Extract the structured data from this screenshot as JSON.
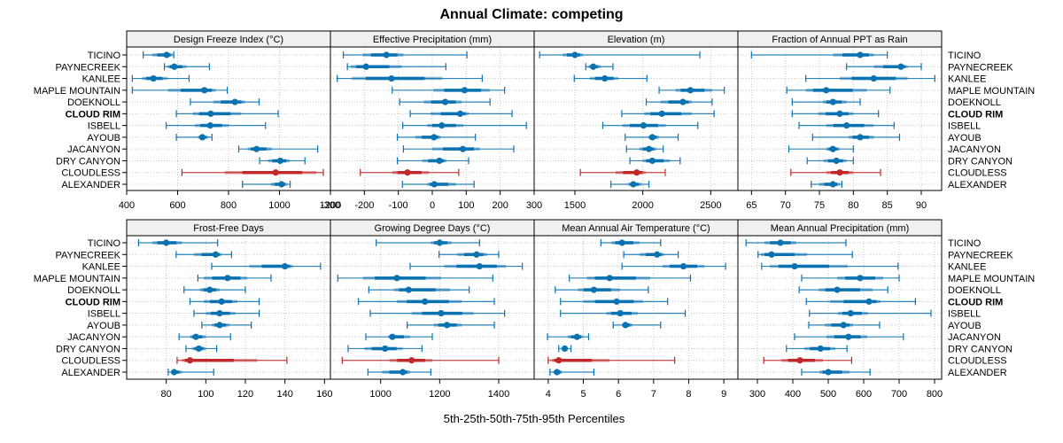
{
  "chart_data": {
    "type": "dotplot-percentiles",
    "title": "Annual Climate: competing",
    "xlabel": "5th-25th-50th-75th-95th Percentiles",
    "ylabel": "",
    "sites": [
      "TICINO",
      "PAYNECREEK",
      "KANLEE",
      "MAPLE MOUNTAIN",
      "DOEKNOLL",
      "CLOUD RIM",
      "ISBELL",
      "AYOUB",
      "JACANYON",
      "DRY CANYON",
      "CLOUDLESS",
      "ALEXANDER"
    ],
    "highlight_site": "CLOUD RIM",
    "colors": {
      "default": "#1f77b4",
      "series_blue": "#0a72b0",
      "highlight_red": "#c0282a",
      "strip_bg": "#f0f0f0",
      "grid": "#c8c8c8"
    },
    "red_site": "CLOUDLESS",
    "grid": true,
    "panels": [
      {
        "name": "Design Freeze Index (°C)",
        "xlim": [
          400,
          1200
        ],
        "ticks": [
          400,
          600,
          800,
          1000,
          1200
        ],
        "values": [
          [
            465,
            500,
            557,
            580,
            585
          ],
          [
            548,
            560,
            587,
            635,
            725
          ],
          [
            422,
            460,
            505,
            560,
            645
          ],
          [
            422,
            562,
            705,
            750,
            795
          ],
          [
            650,
            740,
            825,
            865,
            920
          ],
          [
            595,
            660,
            730,
            850,
            995
          ],
          [
            555,
            668,
            728,
            800,
            945
          ],
          [
            595,
            680,
            697,
            720,
            735
          ],
          [
            840,
            875,
            910,
            970,
            1150
          ],
          [
            922,
            955,
            1003,
            1040,
            1100
          ],
          [
            617,
            785,
            985,
            1145,
            1172
          ],
          [
            855,
            965,
            1008,
            1030,
            1042
          ]
        ]
      },
      {
        "name": "Effective Precipitation (mm)",
        "xlim": [
          -300,
          300
        ],
        "ticks": [
          -300,
          -200,
          -100,
          0,
          100,
          200,
          300
        ],
        "values": [
          [
            -262,
            -205,
            -135,
            -85,
            102
          ],
          [
            -250,
            -240,
            -195,
            -90,
            40
          ],
          [
            -280,
            -237,
            -120,
            30,
            147
          ],
          [
            -118,
            3,
            95,
            170,
            213
          ],
          [
            -96,
            -25,
            38,
            86,
            170
          ],
          [
            -65,
            -5,
            82,
            107,
            235
          ],
          [
            -87,
            -15,
            28,
            92,
            277
          ],
          [
            -103,
            -50,
            5,
            25,
            127
          ],
          [
            -85,
            0,
            90,
            140,
            240
          ],
          [
            -103,
            -30,
            21,
            42,
            107
          ],
          [
            -212,
            -118,
            -73,
            -10,
            78
          ],
          [
            -88,
            -15,
            6,
            70,
            123
          ]
        ]
      },
      {
        "name": "Elevation (m)",
        "xlim": [
          1200,
          2700
        ],
        "ticks": [
          1500,
          2000,
          2500
        ],
        "values": [
          [
            1240,
            1410,
            1500,
            1560,
            2420
          ],
          [
            1580,
            1600,
            1635,
            1690,
            1780
          ],
          [
            1495,
            1610,
            1720,
            1820,
            2030
          ],
          [
            2120,
            2240,
            2350,
            2510,
            2600
          ],
          [
            2025,
            2130,
            2295,
            2360,
            2510
          ],
          [
            1845,
            2010,
            2140,
            2360,
            2525
          ],
          [
            1705,
            1850,
            2005,
            2170,
            2405
          ],
          [
            1870,
            2040,
            2070,
            2120,
            2260
          ],
          [
            1880,
            1975,
            2045,
            2100,
            2150
          ],
          [
            1905,
            2000,
            2070,
            2200,
            2275
          ],
          [
            1540,
            1800,
            1955,
            2020,
            2165
          ],
          [
            1765,
            1890,
            1930,
            1990,
            2045
          ]
        ]
      },
      {
        "name": "Fraction of Annual PPT as Rain",
        "xlim": [
          63,
          93
        ],
        "ticks": [
          65,
          70,
          75,
          80,
          85,
          90
        ],
        "values": [
          [
            65,
            77,
            81,
            83,
            85
          ],
          [
            79,
            83,
            87,
            88,
            90
          ],
          [
            73,
            78,
            83,
            88,
            92
          ],
          [
            70.2,
            73,
            76,
            82,
            85.4
          ],
          [
            71,
            75.5,
            77,
            79,
            81
          ],
          [
            71,
            74.8,
            78,
            80,
            83.7
          ],
          [
            72,
            76,
            79,
            83,
            86
          ],
          [
            74,
            79.3,
            81,
            83,
            86.8
          ],
          [
            70.5,
            76,
            77,
            78,
            80
          ],
          [
            73.2,
            75.6,
            77.5,
            79,
            80
          ],
          [
            70.8,
            76,
            78,
            80,
            84
          ],
          [
            73.8,
            75,
            77,
            78,
            78.3
          ]
        ]
      },
      {
        "name": "Frost-Free Days",
        "xlim": [
          60,
          163
        ],
        "ticks": [
          80,
          100,
          120,
          140,
          160
        ],
        "values": [
          [
            66,
            73,
            80,
            88,
            106
          ],
          [
            85,
            94,
            105,
            108,
            113
          ],
          [
            103,
            122,
            140,
            144,
            158
          ],
          [
            96,
            99,
            111,
            121,
            133
          ],
          [
            89,
            97,
            102,
            107,
            120
          ],
          [
            92,
            99,
            108,
            116,
            127
          ],
          [
            94,
            100,
            107,
            115,
            127
          ],
          [
            98,
            103,
            107,
            112,
            123
          ],
          [
            86.5,
            92,
            95,
            100,
            112.5
          ],
          [
            90,
            93,
            96.5,
            100,
            105.5
          ],
          [
            85.5,
            88,
            92,
            126,
            141
          ],
          [
            81,
            82.5,
            84,
            88,
            104
          ]
        ]
      },
      {
        "name": "Growing Degree Days (°C)",
        "xlim": [
          830,
          1520
        ],
        "ticks": [
          1000,
          1200,
          1400
        ],
        "values": [
          [
            985,
            1170,
            1200,
            1240,
            1335
          ],
          [
            1198,
            1260,
            1325,
            1360,
            1400
          ],
          [
            1100,
            1215,
            1335,
            1425,
            1480
          ],
          [
            855,
            940,
            1055,
            1205,
            1380
          ],
          [
            960,
            1045,
            1095,
            1235,
            1300
          ],
          [
            925,
            1055,
            1150,
            1275,
            1385
          ],
          [
            965,
            1105,
            1205,
            1315,
            1420
          ],
          [
            1090,
            1180,
            1225,
            1275,
            1385
          ],
          [
            950,
            1025,
            1040,
            1100,
            1175
          ],
          [
            890,
            945,
            1015,
            1075,
            1140
          ],
          [
            870,
            1030,
            1105,
            1175,
            1400
          ],
          [
            957,
            1005,
            1075,
            1100,
            1170
          ]
        ]
      },
      {
        "name": "Mean Annual Air Temperature (°C)",
        "xlim": [
          3.6,
          9.4
        ],
        "ticks": [
          4,
          5,
          6,
          7,
          8,
          9
        ],
        "values": [
          [
            5.5,
            5.8,
            6.1,
            6.6,
            7.2
          ],
          [
            6.15,
            6.6,
            7.1,
            7.3,
            7.7
          ],
          [
            6.1,
            7.25,
            7.85,
            8.45,
            9.05
          ],
          [
            4.6,
            5.1,
            5.75,
            6.9,
            8.05
          ],
          [
            4.2,
            4.85,
            5.3,
            6.05,
            6.85
          ],
          [
            4.35,
            5.0,
            5.95,
            6.7,
            7.4
          ],
          [
            4.35,
            5.65,
            6.05,
            6.55,
            7.9
          ],
          [
            5.85,
            6.1,
            6.2,
            6.4,
            7.2
          ],
          [
            3.98,
            4.55,
            4.82,
            5.0,
            5.15
          ],
          [
            4.3,
            4.4,
            4.47,
            4.55,
            4.65
          ],
          [
            4.0,
            4.1,
            4.3,
            5.75,
            7.6
          ],
          [
            4.05,
            4.15,
            4.25,
            4.4,
            5.3
          ]
        ]
      },
      {
        "name": "Mean Annual Precipitation (mm)",
        "xlim": [
          245,
          820
        ],
        "ticks": [
          300,
          400,
          500,
          600,
          700,
          800
        ],
        "values": [
          [
            268,
            320,
            365,
            410,
            550
          ],
          [
            302,
            310,
            340,
            440,
            568
          ],
          [
            312,
            335,
            405,
            555,
            697
          ],
          [
            425,
            525,
            590,
            655,
            700
          ],
          [
            418,
            473,
            525,
            625,
            668
          ],
          [
            438,
            505,
            615,
            648,
            746
          ],
          [
            447,
            527,
            563,
            612,
            790
          ],
          [
            445,
            490,
            543,
            570,
            645
          ],
          [
            405,
            495,
            557,
            610,
            712
          ],
          [
            382,
            432,
            478,
            520,
            553
          ],
          [
            318,
            368,
            420,
            485,
            566
          ],
          [
            425,
            475,
            500,
            560,
            618
          ]
        ]
      }
    ]
  }
}
